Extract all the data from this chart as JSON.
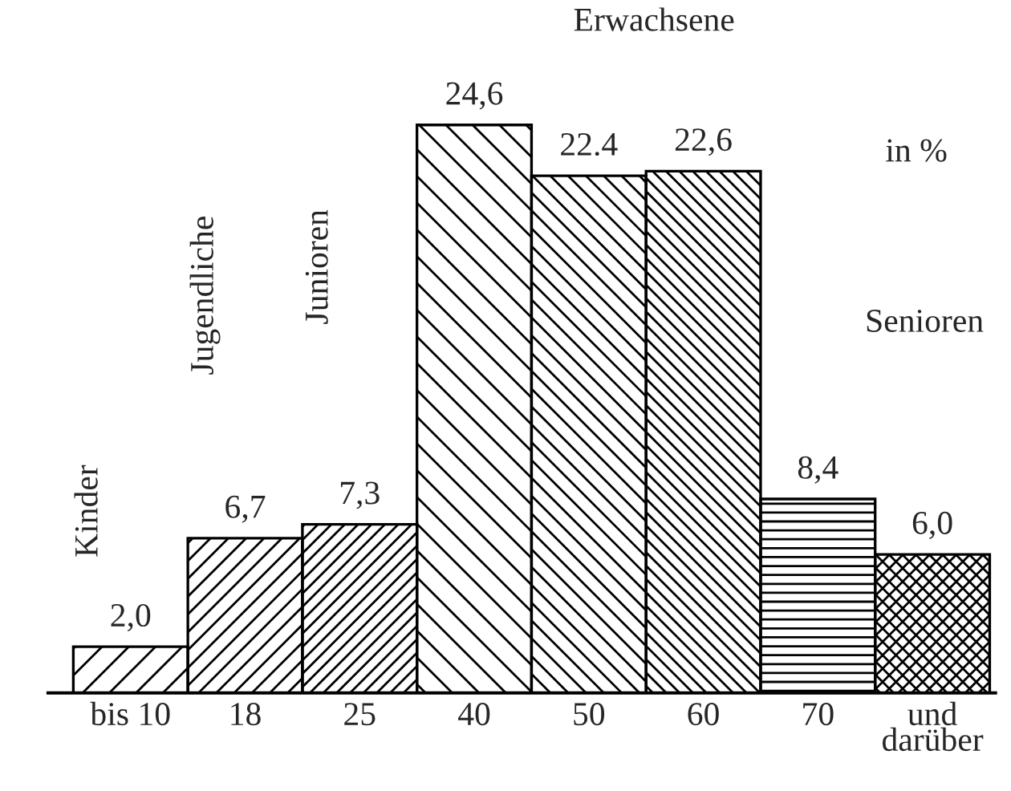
{
  "chart_data": {
    "type": "bar",
    "categories": [
      "bis 10",
      "18",
      "25",
      "40",
      "50",
      "60",
      "70",
      "und\ndarüber"
    ],
    "values": [
      2.0,
      6.7,
      7.3,
      24.6,
      22.4,
      22.6,
      8.4,
      6.0
    ],
    "value_labels": [
      "2,0",
      "6,7",
      "7,3",
      "24,6",
      "22.4",
      "22,6",
      "8,4",
      "6,0"
    ],
    "color": "#000000",
    "annotations": [
      "Kinder",
      "Jugendliche",
      "Junioren",
      "Erwachsene",
      "in %",
      "Senioren"
    ],
    "grid": false,
    "legend": false
  }
}
